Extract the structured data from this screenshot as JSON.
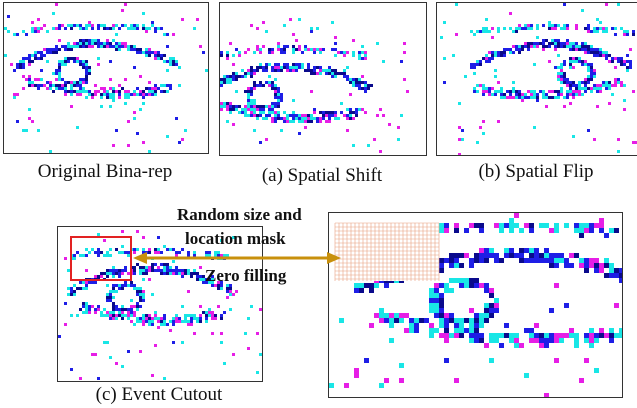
{
  "captions": {
    "original": "Original Bina-rep",
    "shift": "(a) Spatial Shift",
    "flip": "(b) Spatial Flip",
    "cutout": "(c) Event Cutout"
  },
  "annotations": {
    "mask_line1": "Random  size and",
    "mask_line2": "location  mask",
    "zero_fill": "Zero filling"
  },
  "colors": {
    "event_cyan": "#19e6e6",
    "event_magenta": "#e61ee6",
    "event_blue": "#1e1ee6",
    "event_dark": "#0a0a8c",
    "mask_box": "#e22222",
    "arrow": "#c8900c",
    "mask_grid": "#e8a080"
  }
}
